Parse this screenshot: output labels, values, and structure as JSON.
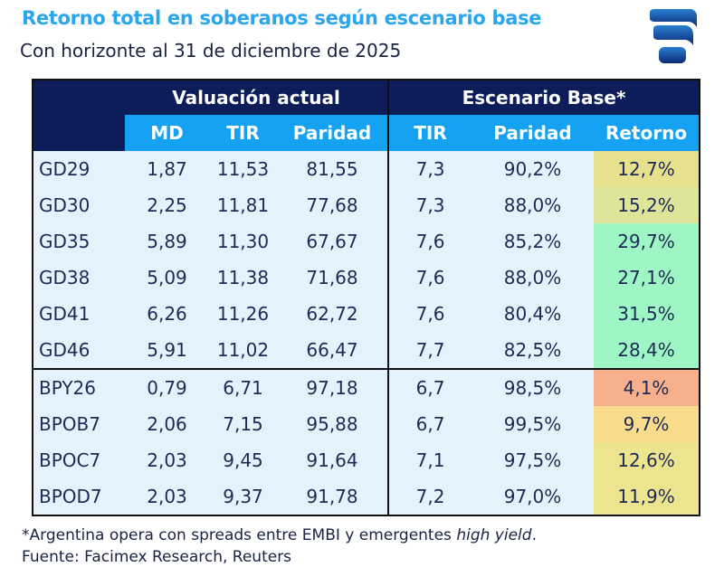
{
  "title": "Retorno total en soberanos según escenario base",
  "subtitle": "Con horizonte al 31 de diciembre de 2025",
  "logo": "Facimex logo",
  "chart_data": {
    "type": "table",
    "group_headers": [
      "Valuación actual",
      "Escenario Base*"
    ],
    "columns": [
      "MD",
      "TIR",
      "Paridad",
      "TIR",
      "Paridad",
      "Retorno"
    ],
    "rows": [
      {
        "name": "GD29",
        "values": [
          "1,87",
          "11,53",
          "81,55",
          "7,3",
          "90,2%",
          "12,7%"
        ],
        "color": "#e7e08d"
      },
      {
        "name": "GD30",
        "values": [
          "2,25",
          "11,81",
          "77,68",
          "7,3",
          "88,0%",
          "15,2%"
        ],
        "color": "#dee59b"
      },
      {
        "name": "GD35",
        "values": [
          "5,89",
          "11,30",
          "67,67",
          "7,6",
          "85,2%",
          "29,7%"
        ],
        "color": "#9ef6c5"
      },
      {
        "name": "GD38",
        "values": [
          "5,09",
          "11,38",
          "71,68",
          "7,6",
          "88,0%",
          "27,1%"
        ],
        "color": "#9ef6c5"
      },
      {
        "name": "GD41",
        "values": [
          "6,26",
          "11,26",
          "62,72",
          "7,6",
          "80,4%",
          "31,5%"
        ],
        "color": "#9ef6c5"
      },
      {
        "name": "GD46",
        "values": [
          "5,91",
          "11,02",
          "66,47",
          "7,7",
          "82,5%",
          "28,4%"
        ],
        "color": "#9ef6c5"
      },
      {
        "name": "BPY26",
        "values": [
          "0,79",
          "6,71",
          "97,18",
          "6,7",
          "98,5%",
          "4,1%"
        ],
        "color": "#f8b08c"
      },
      {
        "name": "BPOB7",
        "values": [
          "2,06",
          "7,15",
          "95,88",
          "6,7",
          "99,5%",
          "9,7%"
        ],
        "color": "#fadd8c"
      },
      {
        "name": "BPOC7",
        "values": [
          "2,03",
          "9,45",
          "91,64",
          "7,1",
          "97,5%",
          "12,6%"
        ],
        "color": "#ece48e"
      },
      {
        "name": "BPOD7",
        "values": [
          "2,03",
          "9,37",
          "91,78",
          "7,2",
          "97,0%",
          "11,9%"
        ],
        "color": "#ece48e"
      }
    ]
  },
  "footnote": {
    "line1_prefix": "*Argentina opera con spreads entre EMBI y emergentes ",
    "line1_italic": "high yield",
    "line1_suffix": ".",
    "line2": "Fuente: Facimex Research, Reuters"
  }
}
